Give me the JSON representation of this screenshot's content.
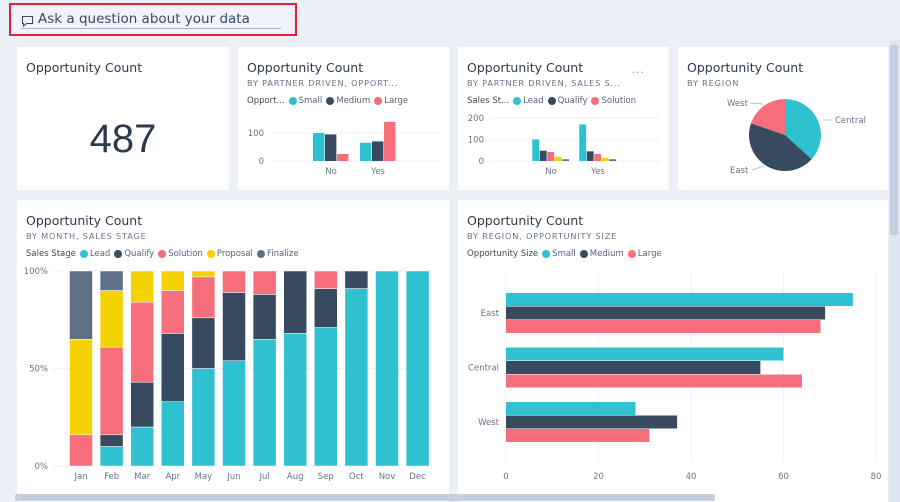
{
  "qa": {
    "placeholder": "Ask a question about your data",
    "icon": "speech-bubble-icon"
  },
  "colors": {
    "lead": "#2fc1d0",
    "qualify": "#374a5f",
    "solution": "#f66e7b",
    "proposal": "#f4d100",
    "finalize": "#5f7187",
    "small": "#2fc1d0",
    "medium": "#374a5f",
    "large": "#f66e7b",
    "east": "#374a5f",
    "central": "#2fc1d0",
    "west": "#f66e7b"
  },
  "tiles": {
    "kpi": {
      "title": "Opportunity Count",
      "value": "487"
    },
    "partner_size": {
      "title": "Opportunity Count",
      "subtitle": "BY PARTNER DRIVEN, OPPORT...",
      "legend_title": "Opport...",
      "legend": [
        "Small",
        "Medium",
        "Large"
      ]
    },
    "partner_stage": {
      "title": "Opportunity Count",
      "subtitle": "BY PARTNER DRIVEN, SALES S...",
      "more": "...",
      "legend_title": "Sales St...",
      "legend": [
        "Lead",
        "Qualify",
        "Solution"
      ]
    },
    "region_pie": {
      "title": "Opportunity Count",
      "subtitle": "BY REGION"
    },
    "month_stage": {
      "title": "Opportunity Count",
      "subtitle": "BY MONTH, SALES STAGE",
      "legend_title": "Sales Stage",
      "legend": [
        "Lead",
        "Qualify",
        "Solution",
        "Proposal",
        "Finalize"
      ]
    },
    "region_size": {
      "title": "Opportunity Count",
      "subtitle": "BY REGION, OPPORTUNITY SIZE",
      "legend_title": "Opportunity Size",
      "legend": [
        "Small",
        "Medium",
        "Large"
      ]
    }
  },
  "chart_data": [
    {
      "type": "bar",
      "categories": [
        "No",
        "Yes"
      ],
      "series": [
        {
          "name": "Small",
          "values": [
            100,
            65
          ]
        },
        {
          "name": "Medium",
          "values": [
            95,
            70
          ]
        },
        {
          "name": "Large",
          "values": [
            25,
            140
          ]
        }
      ],
      "yticks": [
        "0",
        "100"
      ],
      "ylim": [
        0,
        150
      ]
    },
    {
      "type": "bar",
      "categories": [
        "No",
        "Yes"
      ],
      "series": [
        {
          "name": "Lead",
          "values": [
            100,
            170
          ]
        },
        {
          "name": "Qualify",
          "values": [
            48,
            45
          ]
        },
        {
          "name": "Solution",
          "values": [
            42,
            33
          ]
        },
        {
          "name": "Proposal",
          "values": [
            20,
            15
          ]
        },
        {
          "name": "Finalize",
          "values": [
            8,
            8
          ]
        }
      ],
      "yticks": [
        "0",
        "100",
        "200"
      ],
      "ylim": [
        0,
        200
      ]
    },
    {
      "type": "pie",
      "categories": [
        "Central",
        "East",
        "West"
      ],
      "values": [
        179,
        212,
        96
      ]
    },
    {
      "type": "bar",
      "stacked": "100%",
      "categories": [
        "Jan",
        "Feb",
        "Mar",
        "Apr",
        "May",
        "Jun",
        "Jul",
        "Aug",
        "Sep",
        "Oct",
        "Nov",
        "Dec"
      ],
      "series": [
        {
          "name": "Lead",
          "values": [
            0,
            10,
            20,
            33,
            50,
            54,
            65,
            68,
            71,
            91,
            100,
            100
          ]
        },
        {
          "name": "Qualify",
          "values": [
            0,
            6,
            23,
            35,
            26,
            35,
            23,
            32,
            20,
            9,
            0,
            0
          ]
        },
        {
          "name": "Solution",
          "values": [
            16,
            45,
            41,
            22,
            21,
            11,
            12,
            0,
            9,
            0,
            0,
            0
          ]
        },
        {
          "name": "Proposal",
          "values": [
            49,
            29,
            16,
            10,
            3,
            0,
            0,
            0,
            0,
            0,
            0,
            0
          ]
        },
        {
          "name": "Finalize",
          "values": [
            35,
            10,
            0,
            0,
            0,
            0,
            0,
            0,
            0,
            0,
            0,
            0
          ]
        }
      ],
      "yticks": [
        "0%",
        "50%",
        "100%"
      ],
      "ylim": [
        0,
        100
      ]
    },
    {
      "type": "bar",
      "orientation": "horizontal",
      "categories": [
        "East",
        "Central",
        "West"
      ],
      "series": [
        {
          "name": "Small",
          "values": [
            75,
            60,
            28
          ]
        },
        {
          "name": "Medium",
          "values": [
            69,
            55,
            37
          ]
        },
        {
          "name": "Large",
          "values": [
            68,
            64,
            31
          ]
        }
      ],
      "xticks": [
        "0",
        "20",
        "40",
        "60",
        "80"
      ],
      "xlim": [
        0,
        80
      ]
    }
  ]
}
